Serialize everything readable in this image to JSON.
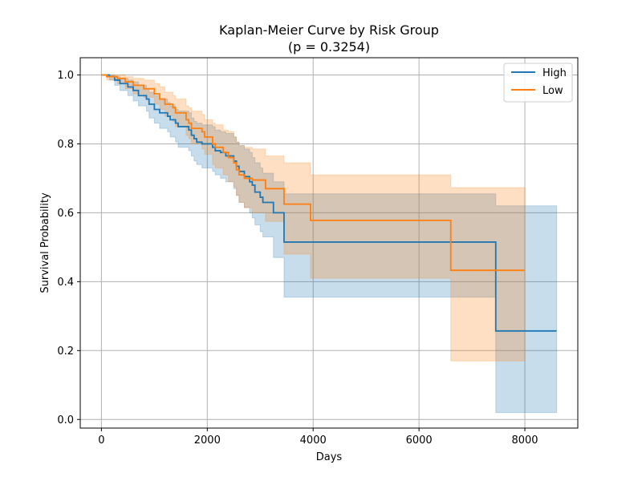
{
  "chart_data": {
    "type": "line",
    "subtype": "kaplan-meier step survival curves with confidence bands",
    "title": "Kaplan-Meier Curve by Risk Group",
    "subtitle": "(p = 0.3254)",
    "xlabel": "Days",
    "ylabel": "Survival Probability",
    "xlim": [
      -400,
      9000
    ],
    "ylim": [
      -0.025,
      1.05
    ],
    "xticks": [
      0,
      2000,
      4000,
      6000,
      8000
    ],
    "xtick_labels": [
      "0",
      "2000",
      "4000",
      "6000",
      "8000"
    ],
    "yticks": [
      0.0,
      0.2,
      0.4,
      0.6,
      0.8,
      1.0
    ],
    "ytick_labels": [
      "0.0",
      "0.2",
      "0.4",
      "0.6",
      "0.8",
      "1.0"
    ],
    "grid": true,
    "legend_position": "top-right",
    "colors": {
      "High": "#1f77b4",
      "Low": "#ff7f0e"
    },
    "series": [
      {
        "name": "High",
        "color": "#1f77b4",
        "band_color": "#1f77b4",
        "band_opacity": 0.25,
        "points": [
          [
            0,
            1.0,
            1.0,
            1.0
          ],
          [
            150,
            0.995,
            0.985,
            1.0
          ],
          [
            250,
            0.985,
            0.97,
            0.995
          ],
          [
            350,
            0.975,
            0.955,
            0.99
          ],
          [
            500,
            0.965,
            0.94,
            0.985
          ],
          [
            600,
            0.955,
            0.925,
            0.98
          ],
          [
            700,
            0.94,
            0.91,
            0.97
          ],
          [
            850,
            0.93,
            0.895,
            0.96
          ],
          [
            900,
            0.915,
            0.875,
            0.95
          ],
          [
            1000,
            0.9,
            0.86,
            0.94
          ],
          [
            1100,
            0.89,
            0.845,
            0.93
          ],
          [
            1250,
            0.88,
            0.835,
            0.92
          ],
          [
            1300,
            0.87,
            0.82,
            0.91
          ],
          [
            1400,
            0.86,
            0.805,
            0.9
          ],
          [
            1450,
            0.85,
            0.79,
            0.895
          ],
          [
            1650,
            0.84,
            0.78,
            0.89
          ],
          [
            1700,
            0.825,
            0.765,
            0.875
          ],
          [
            1750,
            0.815,
            0.75,
            0.865
          ],
          [
            1800,
            0.805,
            0.74,
            0.86
          ],
          [
            1900,
            0.8,
            0.73,
            0.855
          ],
          [
            2100,
            0.79,
            0.72,
            0.85
          ],
          [
            2150,
            0.78,
            0.71,
            0.84
          ],
          [
            2250,
            0.775,
            0.7,
            0.835
          ],
          [
            2350,
            0.765,
            0.69,
            0.83
          ],
          [
            2500,
            0.75,
            0.67,
            0.82
          ],
          [
            2550,
            0.735,
            0.65,
            0.805
          ],
          [
            2600,
            0.72,
            0.63,
            0.795
          ],
          [
            2700,
            0.705,
            0.615,
            0.785
          ],
          [
            2800,
            0.69,
            0.6,
            0.775
          ],
          [
            2850,
            0.68,
            0.585,
            0.76
          ],
          [
            2900,
            0.66,
            0.565,
            0.745
          ],
          [
            3000,
            0.645,
            0.545,
            0.73
          ],
          [
            3050,
            0.63,
            0.53,
            0.715
          ],
          [
            3250,
            0.6,
            0.47,
            0.69
          ],
          [
            3450,
            0.515,
            0.355,
            0.655
          ],
          [
            7450,
            0.257,
            0.02,
            0.62
          ],
          [
            8600,
            0.257,
            0.02,
            0.62
          ]
        ]
      },
      {
        "name": "Low",
        "color": "#ff7f0e",
        "band_color": "#ff7f0e",
        "band_opacity": 0.25,
        "points": [
          [
            0,
            1.0,
            1.0,
            1.0
          ],
          [
            100,
            0.995,
            0.985,
            1.0
          ],
          [
            300,
            0.99,
            0.975,
            1.0
          ],
          [
            450,
            0.98,
            0.96,
            0.995
          ],
          [
            600,
            0.97,
            0.945,
            0.99
          ],
          [
            800,
            0.96,
            0.935,
            0.985
          ],
          [
            1000,
            0.945,
            0.915,
            0.975
          ],
          [
            1100,
            0.93,
            0.9,
            0.965
          ],
          [
            1200,
            0.915,
            0.88,
            0.95
          ],
          [
            1350,
            0.905,
            0.865,
            0.94
          ],
          [
            1400,
            0.89,
            0.85,
            0.93
          ],
          [
            1600,
            0.87,
            0.825,
            0.91
          ],
          [
            1650,
            0.86,
            0.815,
            0.905
          ],
          [
            1700,
            0.845,
            0.8,
            0.895
          ],
          [
            1900,
            0.835,
            0.785,
            0.885
          ],
          [
            1950,
            0.82,
            0.77,
            0.87
          ],
          [
            2100,
            0.8,
            0.74,
            0.86
          ],
          [
            2150,
            0.79,
            0.73,
            0.855
          ],
          [
            2300,
            0.775,
            0.71,
            0.84
          ],
          [
            2400,
            0.76,
            0.69,
            0.835
          ],
          [
            2500,
            0.745,
            0.675,
            0.82
          ],
          [
            2550,
            0.725,
            0.65,
            0.805
          ],
          [
            2600,
            0.71,
            0.63,
            0.795
          ],
          [
            2700,
            0.7,
            0.615,
            0.79
          ],
          [
            2850,
            0.695,
            0.6,
            0.785
          ],
          [
            3100,
            0.67,
            0.575,
            0.765
          ],
          [
            3450,
            0.625,
            0.48,
            0.745
          ],
          [
            3950,
            0.578,
            0.41,
            0.71
          ],
          [
            6600,
            0.433,
            0.17,
            0.673
          ],
          [
            8000,
            0.433,
            0.17,
            0.673
          ]
        ]
      }
    ]
  }
}
